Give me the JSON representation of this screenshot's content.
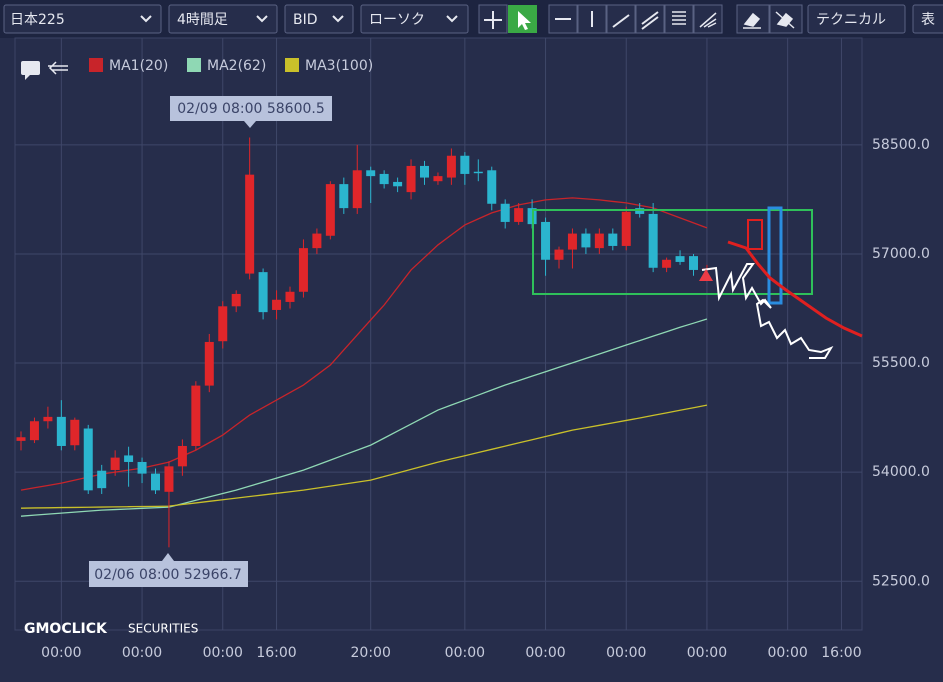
{
  "toolbar": {
    "symbol": "日本225",
    "timeframe": "4時間足",
    "price_type": "BID",
    "chart_style": "ローソク",
    "technical": "テクニカル",
    "table": "表"
  },
  "watermark": {
    "brand": "GMOCLICK",
    "suffix": "SECURITIES"
  },
  "chart_data": {
    "type": "candlestick",
    "up_color": "#e0262a",
    "down_color": "#2bb5cf",
    "categories": [
      null,
      null,
      null,
      "00:00",
      null,
      null,
      null,
      null,
      null,
      "00:00",
      null,
      null,
      null,
      null,
      null,
      "00:00",
      null,
      null,
      null,
      "16:00",
      null,
      null,
      null,
      null,
      null,
      null,
      "20:00",
      null,
      null,
      null,
      null,
      null,
      null,
      "00:00",
      null,
      null,
      null,
      null,
      null,
      "00:00",
      null,
      null,
      null,
      null,
      null,
      "00:00",
      null,
      null,
      null,
      null,
      null,
      "00:00",
      null,
      null,
      null,
      null,
      null,
      "00:00",
      null,
      null,
      null,
      "16:00",
      null
    ],
    "open": [
      54430,
      54440,
      54700,
      54760,
      54370,
      54600,
      54020,
      54030,
      54230,
      54140,
      53980,
      53730,
      54080,
      54360,
      55190,
      55800,
      56280,
      56730,
      56750,
      56230,
      56340,
      56480,
      57080,
      57250,
      57960,
      57630,
      58150,
      58100,
      57990,
      57850,
      58210,
      58000,
      58050,
      58350,
      58130,
      58150,
      57690,
      57440,
      57630,
      57440,
      56920,
      57060,
      57280,
      57080,
      57280,
      57110,
      57630,
      57550,
      56810,
      56970,
      56970,
      56780,
      null,
      null,
      null,
      null,
      null,
      null,
      null,
      null,
      null,
      null,
      null
    ],
    "high": [
      54560,
      54750,
      54900,
      54990,
      54750,
      54650,
      54100,
      54300,
      54350,
      54200,
      54050,
      54150,
      54450,
      55250,
      55900,
      56350,
      56500,
      58600.5,
      56800,
      56500,
      56550,
      57200,
      57350,
      58000,
      58050,
      58500,
      58200,
      58150,
      58050,
      58300,
      58280,
      58120,
      58450,
      58400,
      58300,
      58200,
      57750,
      57700,
      57750,
      57500,
      57100,
      57350,
      57350,
      57350,
      57350,
      57650,
      57700,
      57700,
      56950,
      57050,
      57000,
      56850,
      null,
      null,
      null,
      null,
      null,
      null,
      null,
      null,
      null,
      null,
      null
    ],
    "low": [
      54300,
      54400,
      54600,
      54300,
      54300,
      53700,
      53700,
      53950,
      53800,
      53850,
      53700,
      52966.7,
      53950,
      54300,
      55100,
      55700,
      56200,
      56650,
      56100,
      56100,
      56250,
      56400,
      57000,
      57200,
      57550,
      57550,
      57700,
      57900,
      57850,
      57750,
      57950,
      57950,
      57950,
      57950,
      58000,
      57600,
      57350,
      57400,
      57350,
      56700,
      56800,
      56800,
      57000,
      57000,
      57050,
      57050,
      57500,
      56750,
      56750,
      56850,
      56700,
      56700,
      null,
      null,
      null,
      null,
      null,
      null,
      null,
      null,
      null,
      null,
      null
    ],
    "close": [
      54480,
      54700,
      54760,
      54360,
      54720,
      53750,
      53780,
      54200,
      54140,
      53980,
      53750,
      54080,
      54360,
      55190,
      55790,
      56280,
      56450,
      58090,
      56200,
      56370,
      56480,
      57080,
      57280,
      57960,
      57630,
      58150,
      58070,
      57960,
      57930,
      58210,
      58050,
      58070,
      58350,
      58100,
      58110,
      57690,
      57440,
      57630,
      57410,
      56920,
      57060,
      57280,
      57090,
      57280,
      57110,
      57580,
      57550,
      56810,
      56920,
      56890,
      56780,
      56800,
      null,
      null,
      null,
      null,
      null,
      null,
      null,
      null,
      null,
      null,
      null
    ],
    "series": [
      {
        "name": "MA1(20)",
        "color": "#c8242a",
        "values": [
          53753,
          53785,
          53817,
          53849,
          53890,
          53932,
          53973,
          54000,
          54028,
          54056,
          54097,
          54138,
          54220,
          54303,
          54406,
          54510,
          54648,
          54785,
          54888,
          54991,
          55095,
          55198,
          55335,
          55473,
          55680,
          55886,
          56092,
          56298,
          56539,
          56780,
          56952,
          57124,
          57262,
          57399,
          57482,
          57564,
          57619,
          57674,
          57709,
          57743,
          57757,
          57771,
          57757,
          57743,
          57722,
          57702,
          57668,
          57633,
          57565,
          57496,
          57427,
          57358,
          null,
          null,
          null,
          null,
          null,
          null,
          null,
          null,
          null,
          null,
          null
        ]
      },
      {
        "name": "MA2(62)",
        "color": "#8fd8b4",
        "values": [
          53395,
          53409,
          53423,
          53437,
          53450,
          53464,
          53478,
          53486,
          53494,
          53503,
          53511,
          53519,
          53566,
          53613,
          53660,
          53706,
          53753,
          53808,
          53863,
          53918,
          53973,
          54028,
          54097,
          54166,
          54235,
          54303,
          54372,
          54468,
          54565,
          54661,
          54757,
          54854,
          54923,
          54991,
          55060,
          55129,
          55198,
          55259,
          55320,
          55381,
          55442,
          55503,
          55564,
          55625,
          55687,
          55748,
          55809,
          55870,
          55931,
          55992,
          56048,
          56105,
          null,
          null,
          null,
          null,
          null,
          null,
          null,
          null,
          null,
          null,
          null
        ]
      },
      {
        "name": "MA3(100)",
        "color": "#c9c02a",
        "values": [
          53505,
          53508,
          53510,
          53513,
          53515,
          53518,
          53520,
          53523,
          53525,
          53528,
          53530,
          53533,
          53555,
          53577,
          53599,
          53621,
          53643,
          53665,
          53687,
          53709,
          53731,
          53753,
          53780,
          53808,
          53835,
          53863,
          53890,
          53940,
          53989,
          54039,
          54088,
          54138,
          54182,
          54226,
          54270,
          54314,
          54358,
          54402,
          54446,
          54490,
          54534,
          54578,
          54611,
          54644,
          54678,
          54711,
          54744,
          54780,
          54815,
          54851,
          54886,
          54922,
          null,
          null,
          null,
          null,
          null,
          null,
          null,
          null,
          null,
          null,
          null
        ]
      }
    ],
    "annotations": [
      "02/09 08:00 58600.5",
      "02/06 08:00 52966.7"
    ],
    "ylim": [
      51830,
      60010
    ],
    "yticks": [
      {
        "value": 52500,
        "label": "52500.0"
      },
      {
        "value": 54000,
        "label": "54000.0"
      },
      {
        "value": 55500,
        "label": "55500.0"
      },
      {
        "value": 57000,
        "label": "57000.0"
      },
      {
        "value": 58500,
        "label": "58500.0"
      }
    ],
    "grid": true
  }
}
